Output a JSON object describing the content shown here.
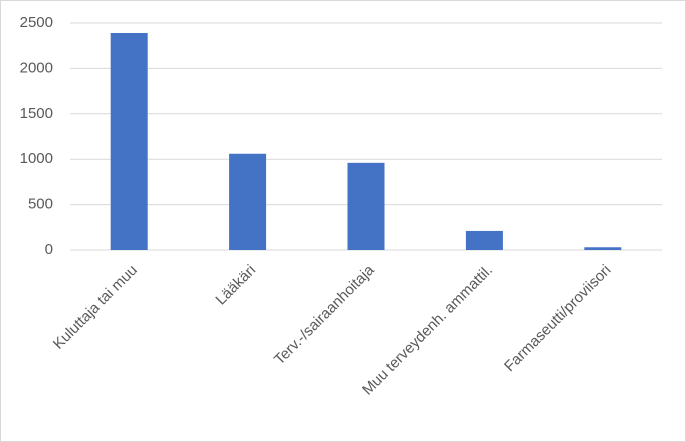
{
  "chart_data": {
    "type": "bar",
    "categories": [
      "Kuluttaja tai muu",
      "Lääkäri",
      "Terv.-/sairaanhoitaja",
      "Muu terveydenh. ammattil.",
      "Farmaseutti/proviisori"
    ],
    "values": [
      2390,
      1060,
      960,
      210,
      30
    ],
    "color": "#4472c4",
    "ylim": [
      0,
      2500
    ],
    "yticks": [
      0,
      500,
      1000,
      1500,
      2000,
      2500
    ],
    "grid": true
  }
}
